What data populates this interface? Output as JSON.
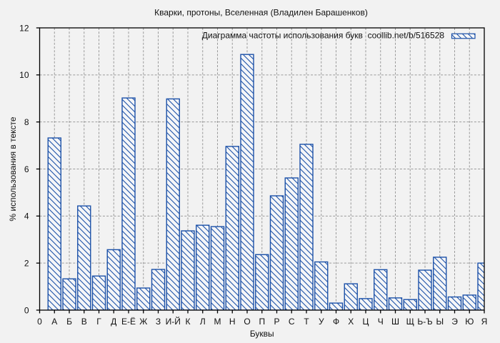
{
  "figure": {
    "background_color": "#f2f2f2",
    "text_color": "#111111"
  },
  "chart_data": {
    "type": "bar",
    "title": "Кварки, протоны, Вселенная (Владилен Барашенков)",
    "legend": {
      "label": "Диаграмма частоты использования букв  coollib.net/b/516528",
      "position": "top-right",
      "swatch": "hatched-bar-sample"
    },
    "xlabel": "Буквы",
    "ylabel": "% использования в тексте",
    "x_origin_label": "0",
    "categories": [
      "А",
      "Б",
      "В",
      "Г",
      "Д",
      "Е-Ё",
      "Ж",
      "З",
      "И-Й",
      "К",
      "Л",
      "М",
      "Н",
      "О",
      "П",
      "Р",
      "С",
      "Т",
      "У",
      "Ф",
      "Х",
      "Ц",
      "Ч",
      "Ш",
      "Щ",
      "Ь-Ъ",
      "Ы",
      "Э",
      "Ю",
      "Я"
    ],
    "values": [
      7.32,
      1.33,
      4.43,
      1.45,
      2.57,
      9.02,
      0.94,
      1.73,
      8.98,
      3.37,
      3.61,
      3.55,
      6.96,
      10.87,
      2.36,
      4.86,
      5.62,
      7.05,
      2.05,
      0.3,
      1.12,
      0.49,
      1.72,
      0.52,
      0.45,
      1.7,
      2.25,
      0.56,
      0.64,
      2.0
    ],
    "ylim": [
      0,
      12
    ],
    "yticks": [
      0,
      2,
      4,
      6,
      8,
      10,
      12
    ],
    "grid": true,
    "grid_style": "dashed",
    "bar_style": {
      "edge_color": "#1c51a8",
      "hatch": "\\",
      "face_color": "#f5f6f8"
    },
    "grid_color": "#9a9a9a",
    "axis_color": "#000000"
  }
}
